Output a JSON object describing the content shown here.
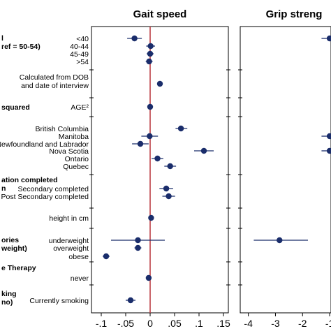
{
  "chart_data": {
    "type": "scatter",
    "subtype": "coefficient-plot",
    "panels": [
      {
        "title": "Gait speed",
        "xlim": [
          -0.12,
          0.16
        ],
        "xticks": [
          -0.1,
          -0.05,
          0,
          0.05,
          0.1,
          0.15
        ],
        "xtick_labels": [
          "-.1",
          "-.05",
          "0",
          ".05",
          ".1",
          ".15"
        ],
        "reference_line": 0,
        "points": [
          {
            "label": "<40",
            "estimate": -0.032,
            "ci": [
              -0.047,
              -0.017
            ]
          },
          {
            "label": "40-44",
            "estimate": 0.001,
            "ci": [
              -0.008,
              0.01
            ]
          },
          {
            "label": "45-49",
            "estimate": 0.0,
            "ci": [
              -0.007,
              0.007
            ]
          },
          {
            "label": ">54",
            "estimate": -0.002,
            "ci": [
              -0.009,
              0.005
            ]
          },
          {
            "label": "Calculated from DOB and date of interview",
            "estimate": 0.02,
            "ci": [
              0.018,
              0.022
            ]
          },
          {
            "label": "AGE²",
            "estimate": 0.0,
            "ci": [
              0.0,
              0.0
            ]
          },
          {
            "label": "British Columbia",
            "estimate": 0.063,
            "ci": [
              0.052,
              0.076
            ]
          },
          {
            "label": "Manitoba",
            "estimate": -0.001,
            "ci": [
              -0.018,
              0.016
            ]
          },
          {
            "label": "Newfoundland and Labrador",
            "estimate": -0.02,
            "ci": [
              -0.037,
              -0.003
            ]
          },
          {
            "label": "Nova Scotia",
            "estimate": 0.11,
            "ci": [
              0.09,
              0.13
            ]
          },
          {
            "label": "Ontario",
            "estimate": 0.015,
            "ci": [
              0.003,
              0.027
            ]
          },
          {
            "label": "Quebec",
            "estimate": 0.041,
            "ci": [
              0.029,
              0.053
            ]
          },
          {
            "label": "Secondary completed",
            "estimate": 0.033,
            "ci": [
              0.019,
              0.047
            ]
          },
          {
            "label": "Post Secondary completed",
            "estimate": 0.038,
            "ci": [
              0.025,
              0.051
            ]
          },
          {
            "label": "height in cm",
            "estimate": 0.002,
            "ci": [
              0.001,
              0.003
            ]
          },
          {
            "label": "underweight",
            "estimate": -0.025,
            "ci": [
              -0.08,
              0.03
            ]
          },
          {
            "label": "overweight",
            "estimate": -0.025,
            "ci": [
              -0.032,
              -0.018
            ]
          },
          {
            "label": "obese",
            "estimate": -0.09,
            "ci": [
              -0.097,
              -0.083
            ]
          },
          {
            "label": "never",
            "estimate": -0.003,
            "ci": [
              -0.008,
              0.002
            ]
          },
          {
            "label": "Currently smoking",
            "estimate": -0.04,
            "ci": [
              -0.05,
              -0.03
            ]
          }
        ]
      },
      {
        "title": "Grip streng",
        "xlim": [
          -4.3,
          -0.95
        ],
        "xticks": [
          -4,
          -3,
          -2,
          -1
        ],
        "xtick_labels": [
          "-4",
          "-3",
          "-2",
          "-1"
        ],
        "points": [
          {
            "label": "<40",
            "estimate": -1.0,
            "ci": [
              -1.3,
              -1.0
            ]
          },
          {
            "label": "Manitoba",
            "estimate": -1.0,
            "ci": [
              -1.3,
              -1.0
            ]
          },
          {
            "label": "Nova Scotia",
            "estimate": -1.0,
            "ci": [
              -1.3,
              -1.0
            ]
          },
          {
            "label": "underweight",
            "estimate": -2.85,
            "ci": [
              -3.8,
              -1.8
            ]
          }
        ]
      }
    ],
    "group_labels": [
      {
        "lines": [
          "l",
          "ref = 50-54)"
        ]
      },
      {
        "lines": [
          "squared"
        ]
      },
      {
        "lines": [
          "ation completed",
          "n"
        ]
      },
      {
        "lines": [
          "ories",
          "weight)"
        ]
      },
      {
        "lines": [
          "e Therapy"
        ]
      },
      {
        "lines": [
          "king",
          "no)"
        ]
      }
    ],
    "row_labels": [
      {
        "lines": [
          "<40"
        ]
      },
      {
        "lines": [
          "40-44"
        ]
      },
      {
        "lines": [
          "45-49"
        ]
      },
      {
        "lines": [
          ">54"
        ]
      },
      {
        "lines": [
          "Calculated from DOB",
          "and date of interview"
        ]
      },
      {
        "lines": [
          "AGE²"
        ]
      },
      {
        "lines": [
          "British Columbia"
        ]
      },
      {
        "lines": [
          "Manitoba"
        ]
      },
      {
        "lines": [
          "Newfoundland and Labrador"
        ]
      },
      {
        "lines": [
          "Nova Scotia"
        ]
      },
      {
        "lines": [
          "Ontario"
        ]
      },
      {
        "lines": [
          "Quebec"
        ]
      },
      {
        "lines": [
          "Secondary completed"
        ]
      },
      {
        "lines": [
          "Post Secondary completed"
        ]
      },
      {
        "lines": [
          "height in cm"
        ]
      },
      {
        "lines": [
          "underweight"
        ]
      },
      {
        "lines": [
          "overweight"
        ]
      },
      {
        "lines": [
          "obese"
        ]
      },
      {
        "lines": [
          "never"
        ]
      },
      {
        "lines": [
          "Currently smoking"
        ]
      }
    ],
    "colors": {
      "marker": "#1a2d6b",
      "ci_line": "#1a2d6b",
      "reference_line": "#b8333a",
      "axis": "#000000",
      "grid_tick": "#999999"
    }
  }
}
